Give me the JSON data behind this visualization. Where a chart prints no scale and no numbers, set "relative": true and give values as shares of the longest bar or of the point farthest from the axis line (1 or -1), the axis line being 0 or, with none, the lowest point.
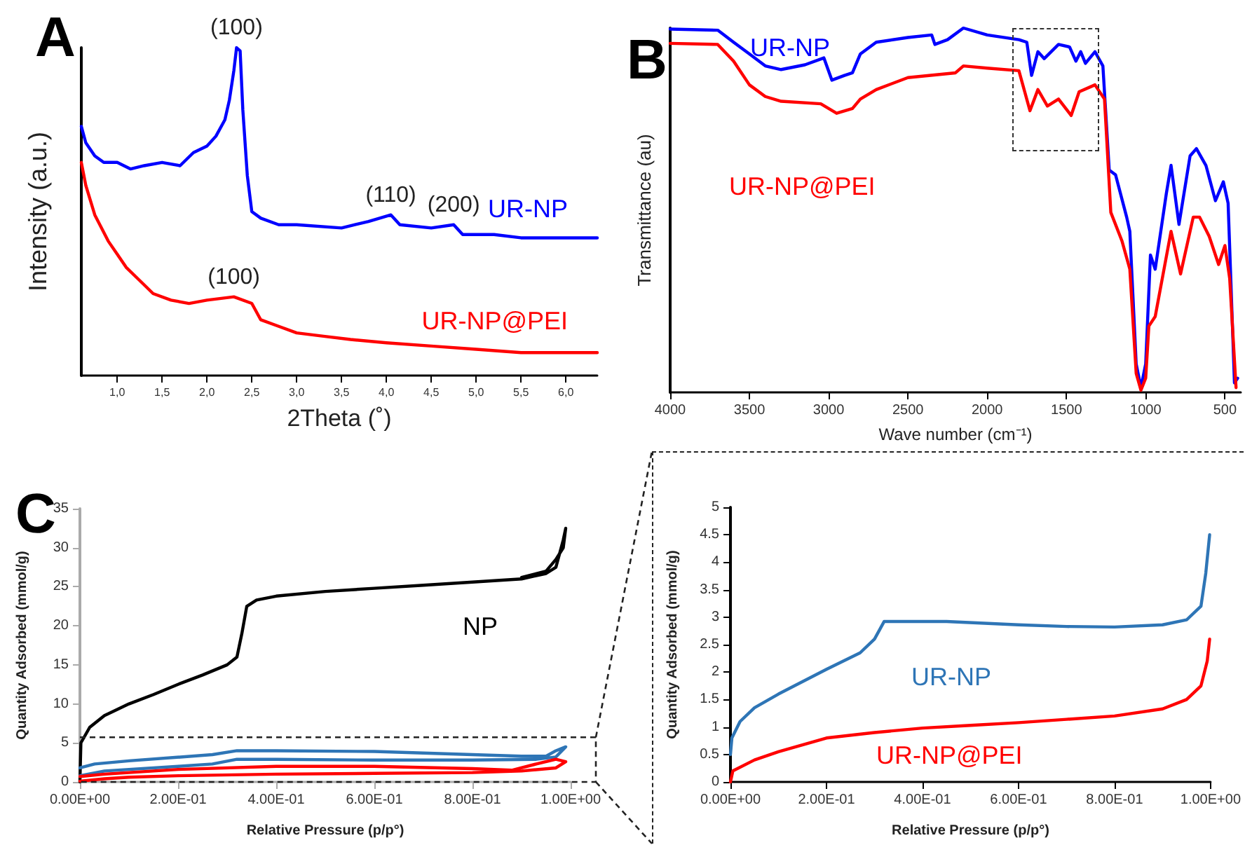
{
  "chart_data": [
    {
      "type": "line",
      "title": "A",
      "xlabel": "2Theta (˚)",
      "ylabel": "Intensity (a.u.)",
      "relative": true,
      "tick_labels": "x",
      "grid": false,
      "legend": false,
      "marker": "none",
      "line_style": "solid",
      "xlim": [
        0.6,
        6.35
      ],
      "xticks": [
        {
          "value": 1,
          "label": "1,0"
        },
        {
          "value": 1.5,
          "label": "1,5"
        },
        {
          "value": 2,
          "label": "2,0"
        },
        {
          "value": 2.5,
          "label": "2,5"
        },
        {
          "value": 3,
          "label": "3,0"
        },
        {
          "value": 3.5,
          "label": "3,5"
        },
        {
          "value": 4,
          "label": "4,0"
        },
        {
          "value": 4.5,
          "label": "4,5"
        },
        {
          "value": 5,
          "label": "5,0"
        },
        {
          "value": 5.5,
          "label": "5,5"
        },
        {
          "value": 6,
          "label": "6,0"
        }
      ],
      "series": [
        {
          "name": "UR-NP",
          "color": "#0000ff",
          "x": [
            0.6,
            0.65,
            0.75,
            0.85,
            1.0,
            1.15,
            1.3,
            1.5,
            1.7,
            1.85,
            2.0,
            2.1,
            2.2,
            2.25,
            2.3,
            2.33,
            2.37,
            2.4,
            2.45,
            2.5,
            2.6,
            2.8,
            3.0,
            3.5,
            3.8,
            4.05,
            4.15,
            4.5,
            4.75,
            4.85,
            5.2,
            5.5,
            6.0,
            6.35
          ],
          "values": [
            0.76,
            0.71,
            0.67,
            0.65,
            0.65,
            0.63,
            0.64,
            0.65,
            0.64,
            0.68,
            0.7,
            0.73,
            0.78,
            0.84,
            0.93,
            1,
            0.99,
            0.81,
            0.61,
            0.5,
            0.48,
            0.46,
            0.46,
            0.45,
            0.47,
            0.49,
            0.46,
            0.45,
            0.46,
            0.43,
            0.43,
            0.42,
            0.42,
            0.42
          ]
        },
        {
          "name": "UR-NP@PEI",
          "color": "#ff0000",
          "x": [
            0.6,
            0.65,
            0.75,
            0.9,
            1.0,
            1.1,
            1.25,
            1.4,
            1.6,
            1.8,
            2.0,
            2.3,
            2.5,
            2.6,
            2.8,
            3.0,
            3.3,
            3.6,
            4.0,
            4.5,
            5.0,
            5.5,
            6.0,
            6.35
          ],
          "values": [
            0.65,
            0.58,
            0.49,
            0.41,
            0.37,
            0.33,
            0.29,
            0.25,
            0.23,
            0.22,
            0.23,
            0.24,
            0.22,
            0.17,
            0.15,
            0.13,
            0.12,
            0.11,
            0.1,
            0.09,
            0.08,
            0.07,
            0.07,
            0.07
          ]
        }
      ],
      "annotations": [
        {
          "text": "(100)",
          "x": 2.33,
          "y": 1
        },
        {
          "text": "(110)",
          "x": 4.05,
          "y": 0.49
        },
        {
          "text": "(200)",
          "x": 4.75,
          "y": 0.46
        },
        {
          "text": "(100)",
          "x": 2.3,
          "y": 0.24
        }
      ]
    },
    {
      "type": "line",
      "title": "B",
      "xlabel": "Wave number (cm⁻¹)",
      "ylabel": "Transmittance (au)",
      "relative": true,
      "tick_labels": "x",
      "grid": false,
      "legend": false,
      "marker": "none",
      "line_style": "solid",
      "xlim": [
        4000,
        400
      ],
      "xticks": [
        4000,
        3500,
        3000,
        2500,
        2000,
        1500,
        1000,
        500
      ],
      "series": [
        {
          "name": "UR-NP",
          "color": "#0000ff",
          "x": [
            4000,
            3700,
            3600,
            3500,
            3400,
            3300,
            3150,
            3030,
            2980,
            2900,
            2850,
            2800,
            2700,
            2500,
            2350,
            2330,
            2250,
            2150,
            2000,
            1800,
            1750,
            1720,
            1680,
            1640,
            1550,
            1480,
            1440,
            1410,
            1380,
            1320,
            1270,
            1230,
            1190,
            1120,
            1100,
            1060,
            1030,
            1000,
            970,
            940,
            870,
            840,
            790,
            720,
            680,
            620,
            560,
            510,
            480,
            440,
            420
          ],
          "values": [
            0.997,
            0.994,
            0.961,
            0.929,
            0.896,
            0.886,
            0.899,
            0.918,
            0.857,
            0.87,
            0.877,
            0.929,
            0.961,
            0.974,
            0.981,
            0.955,
            0.968,
            1,
            0.981,
            0.968,
            0.961,
            0.87,
            0.935,
            0.916,
            0.955,
            0.948,
            0.909,
            0.935,
            0.903,
            0.935,
            0.896,
            0.61,
            0.597,
            0.481,
            0.442,
            0.078,
            0.013,
            0.078,
            0.377,
            0.338,
            0.545,
            0.623,
            0.461,
            0.649,
            0.669,
            0.623,
            0.526,
            0.578,
            0.519,
            0.026,
            0.039
          ]
        },
        {
          "name": "UR-NP@PEI",
          "color": "#ff0000",
          "x": [
            4000,
            3700,
            3600,
            3500,
            3400,
            3300,
            3050,
            2950,
            2850,
            2800,
            2700,
            2500,
            2200,
            2150,
            2000,
            1800,
            1730,
            1680,
            1620,
            1550,
            1470,
            1420,
            1320,
            1260,
            1220,
            1150,
            1100,
            1060,
            1030,
            1000,
            980,
            940,
            840,
            780,
            700,
            660,
            600,
            540,
            500,
            470,
            430
          ],
          "values": [
            0.958,
            0.955,
            0.909,
            0.844,
            0.812,
            0.799,
            0.792,
            0.766,
            0.779,
            0.805,
            0.831,
            0.864,
            0.877,
            0.896,
            0.89,
            0.883,
            0.773,
            0.831,
            0.786,
            0.805,
            0.76,
            0.825,
            0.844,
            0.805,
            0.494,
            0.416,
            0.338,
            0.052,
            0.006,
            0.039,
            0.182,
            0.208,
            0.442,
            0.325,
            0.481,
            0.481,
            0.429,
            0.351,
            0.403,
            0.312,
            0.013
          ]
        }
      ]
    },
    {
      "type": "line",
      "title": "C",
      "xlabel": "Relative Pressure (p/p°)",
      "ylabel": "Quantity Adsorbed (mmol/g)",
      "grid": false,
      "legend": false,
      "marker": "none",
      "line_style": "solid",
      "xlim": [
        0,
        1
      ],
      "xticks": [
        {
          "value": 0,
          "label": "0.00E+00"
        },
        {
          "value": 0.2,
          "label": "2.00E-01"
        },
        {
          "value": 0.4,
          "label": "4.00E-01"
        },
        {
          "value": 0.6,
          "label": "6.00E-01"
        },
        {
          "value": 0.8,
          "label": "8.00E-01"
        },
        {
          "value": 1,
          "label": "1.00E+00"
        }
      ],
      "ylim": [
        0,
        35
      ],
      "yticks": [
        0,
        5,
        10,
        15,
        20,
        25,
        30,
        35
      ],
      "series": [
        {
          "name": "NP",
          "color": "#000000",
          "x": [
            0,
            0.002,
            0.02,
            0.05,
            0.1,
            0.15,
            0.2,
            0.25,
            0.3,
            0.32,
            0.33,
            0.34,
            0.36,
            0.4,
            0.5,
            0.6,
            0.7,
            0.8,
            0.9,
            0.95,
            0.97,
            0.985,
            0.99,
            0.985,
            0.97,
            0.95,
            0.9
          ],
          "values": [
            0,
            5,
            7,
            8.5,
            10,
            11.2,
            12.5,
            13.7,
            15,
            16,
            19,
            22.5,
            23.3,
            23.8,
            24.4,
            24.8,
            25.2,
            25.6,
            26,
            26.7,
            27.5,
            31,
            32.5,
            30,
            28.5,
            27,
            26.2
          ]
        },
        {
          "color": "#2e75b6",
          "x": [
            0,
            0.05,
            0.1,
            0.2,
            0.27,
            0.32,
            0.4,
            0.6,
            0.8,
            0.93,
            0.97,
            0.99,
            0.97,
            0.95,
            0.9,
            0.8,
            0.6,
            0.4,
            0.32,
            0.27,
            0.1,
            0.03,
            0
          ],
          "values": [
            0.8,
            1.4,
            1.6,
            2,
            2.3,
            2.9,
            2.9,
            2.8,
            2.8,
            2.9,
            3.2,
            4.5,
            4,
            3.3,
            3.3,
            3.5,
            3.9,
            4,
            4,
            3.5,
            2.7,
            2.3,
            1.8
          ]
        },
        {
          "color": "#ff0000",
          "x": [
            0,
            0.05,
            0.1,
            0.2,
            0.4,
            0.6,
            0.8,
            0.9,
            0.97,
            0.99,
            0.97,
            0.93,
            0.88,
            0.8,
            0.6,
            0.4,
            0.2,
            0.05,
            0
          ],
          "values": [
            0.1,
            0.4,
            0.6,
            0.8,
            1,
            1.1,
            1.2,
            1.4,
            1.8,
            2.6,
            2.9,
            2.3,
            1.5,
            1.7,
            2,
            2,
            1.6,
            1,
            0.7
          ]
        }
      ]
    },
    {
      "type": "line",
      "xlabel": "Relative Pressure (p/p°)",
      "ylabel": "Quantity Adsorbed (mmol/g)",
      "grid": false,
      "legend": false,
      "marker": "none",
      "line_style": "solid",
      "xlim": [
        0,
        1
      ],
      "xticks": [
        {
          "value": 0,
          "label": "0.00E+00"
        },
        {
          "value": 0.2,
          "label": "2.00E-01"
        },
        {
          "value": 0.4,
          "label": "4.00E-01"
        },
        {
          "value": 0.6,
          "label": "6.00E-01"
        },
        {
          "value": 0.8,
          "label": "8.00E-01"
        },
        {
          "value": 1,
          "label": "1.00E+00"
        }
      ],
      "ylim": [
        0,
        5
      ],
      "yticks": [
        0,
        0.5,
        1,
        1.5,
        2,
        2.5,
        3,
        3.5,
        4,
        4.5,
        5
      ],
      "series": [
        {
          "name": "UR-NP",
          "color": "#2e75b6",
          "x": [
            0,
            0.003,
            0.02,
            0.05,
            0.1,
            0.2,
            0.27,
            0.3,
            0.32,
            0.45,
            0.6,
            0.7,
            0.8,
            0.9,
            0.95,
            0.98,
            0.99,
            0.998
          ],
          "values": [
            0.5,
            0.8,
            1.1,
            1.35,
            1.6,
            2.05,
            2.35,
            2.6,
            2.92,
            2.92,
            2.86,
            2.83,
            2.82,
            2.86,
            2.95,
            3.2,
            3.8,
            4.5
          ]
        },
        {
          "name": "UR-NP@PEI",
          "color": "#ff0000",
          "x": [
            0,
            0.005,
            0.05,
            0.1,
            0.2,
            0.3,
            0.4,
            0.5,
            0.6,
            0.7,
            0.8,
            0.9,
            0.95,
            0.98,
            0.993,
            0.998
          ],
          "values": [
            0,
            0.2,
            0.4,
            0.55,
            0.8,
            0.9,
            0.98,
            1.03,
            1.08,
            1.14,
            1.2,
            1.33,
            1.5,
            1.75,
            2.2,
            2.6
          ]
        }
      ]
    }
  ]
}
